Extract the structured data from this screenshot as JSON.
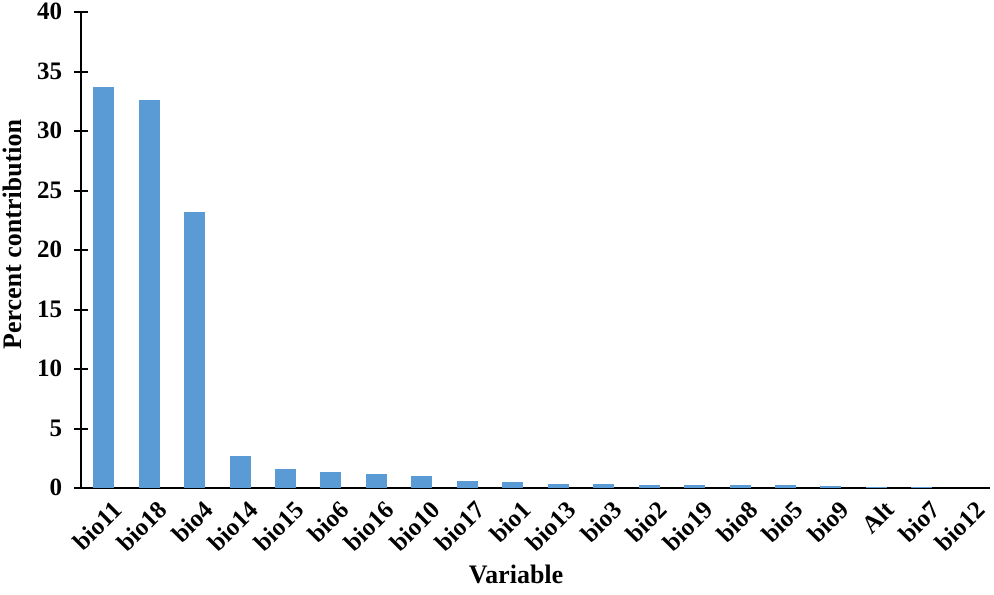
{
  "chart_data": {
    "type": "bar",
    "title": "",
    "xlabel": "Variable",
    "ylabel": "Percent contribution",
    "categories": [
      "bio11",
      "bio18",
      "bio4",
      "bio14",
      "bio15",
      "bio6",
      "bio16",
      "bio10",
      "bio17",
      "bio1",
      "bio13",
      "bio3",
      "bio2",
      "bio19",
      "bio8",
      "bio5",
      "bio9",
      "Alt",
      "bio7",
      "bio12"
    ],
    "values": [
      33.7,
      32.6,
      23.2,
      2.7,
      1.6,
      1.35,
      1.2,
      1.0,
      0.6,
      0.5,
      0.32,
      0.3,
      0.25,
      0.25,
      0.25,
      0.25,
      0.2,
      0.1,
      0.08,
      0.01
    ],
    "ylim": [
      0,
      40
    ],
    "yticks": [
      0,
      5,
      10,
      15,
      20,
      25,
      30,
      35,
      40
    ],
    "grid": false,
    "legend": "none",
    "bar_color": "#5B9BD5",
    "axis_color": "#000000",
    "text_color": "#000000",
    "background_color": "#FFFFFF"
  }
}
